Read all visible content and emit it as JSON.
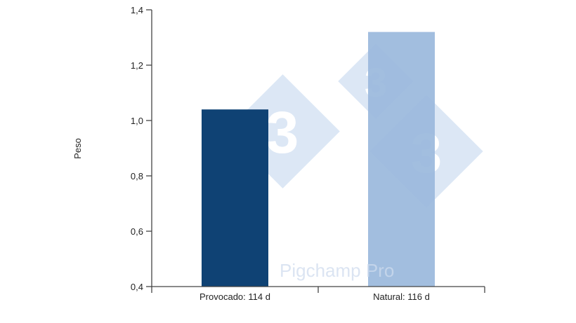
{
  "chart_data": {
    "type": "bar",
    "categories": [
      "Provocado: 114 d",
      "Natural: 116 d"
    ],
    "values": [
      1.04,
      1.32
    ],
    "xlabel": "",
    "ylabel": "Peso",
    "ylim": [
      0.4,
      1.4
    ],
    "yticks": [
      "0,4",
      "0,6",
      "0,8",
      "1,0",
      "1,2",
      "1,4"
    ],
    "grid": false,
    "colors": [
      "#0f4274",
      "#9ab8dc"
    ]
  },
  "watermark": {
    "logo_text": "3",
    "brand_text": "Pigchamp Pro",
    "color": "#c9d9ee"
  }
}
